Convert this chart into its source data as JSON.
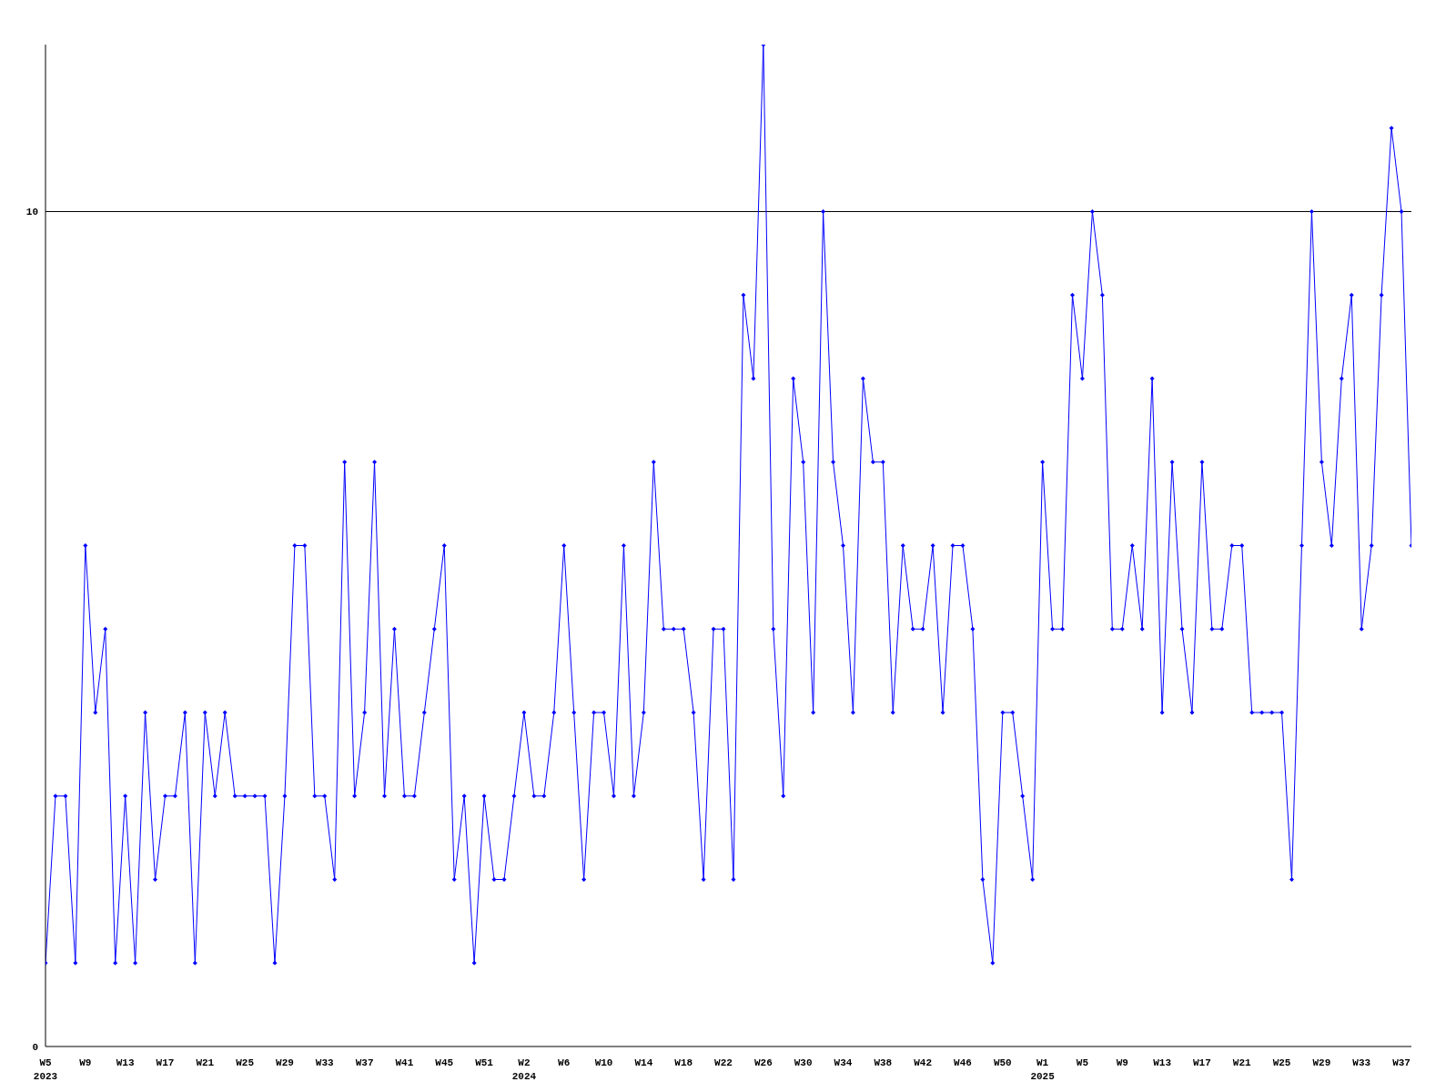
{
  "chart_data": {
    "type": "line",
    "categories": [
      "W5\n2023",
      null,
      null,
      null,
      "W9",
      null,
      null,
      null,
      "W13",
      null,
      null,
      null,
      "W17",
      null,
      null,
      null,
      "W21",
      null,
      null,
      null,
      "W25",
      null,
      null,
      null,
      "W29",
      null,
      null,
      null,
      "W33",
      null,
      null,
      null,
      "W37",
      null,
      null,
      null,
      "W41",
      null,
      null,
      null,
      "W45",
      null,
      null,
      null,
      "W51",
      null,
      null,
      null,
      "W2\n2024",
      null,
      null,
      null,
      "W6",
      null,
      null,
      null,
      "W10",
      null,
      null,
      null,
      "W14",
      null,
      null,
      null,
      "W18",
      null,
      null,
      null,
      "W22",
      null,
      null,
      null,
      "W26",
      null,
      null,
      null,
      "W30",
      null,
      null,
      null,
      "W34",
      null,
      null,
      null,
      "W38",
      null,
      null,
      null,
      "W42",
      null,
      null,
      null,
      "W46",
      null,
      null,
      null,
      "W50",
      null,
      null,
      null,
      "W1\n2025",
      null,
      null,
      null,
      "W5",
      null,
      null,
      null,
      "W9",
      null,
      null,
      null,
      "W13",
      null,
      null,
      null,
      "W17",
      null,
      null,
      null,
      "W21",
      null,
      null,
      null,
      "W25",
      null,
      null,
      null,
      "W29",
      null,
      null,
      null,
      "W33",
      null,
      null,
      null,
      "W37",
      null
    ],
    "series": [
      {
        "color": "#0000ff",
        "values": [
          1,
          3,
          3,
          1,
          6,
          4,
          5,
          1,
          3,
          1,
          4,
          2,
          3,
          3,
          4,
          1,
          4,
          3,
          4,
          3,
          3,
          3,
          3,
          1,
          3,
          6,
          6,
          3,
          3,
          2,
          7,
          3,
          4,
          7,
          3,
          5,
          3,
          3,
          4,
          5,
          6,
          2,
          3,
          1,
          3,
          2,
          2,
          3,
          4,
          3,
          3,
          4,
          6,
          4,
          2,
          4,
          4,
          3,
          6,
          3,
          4,
          7,
          5,
          5,
          5,
          4,
          2,
          5,
          5,
          2,
          9,
          8,
          12,
          5,
          3,
          8,
          7,
          4,
          10,
          7,
          6,
          4,
          8,
          7,
          7,
          4,
          6,
          5,
          5,
          6,
          4,
          6,
          6,
          5,
          2,
          1,
          4,
          4,
          3,
          2,
          7,
          5,
          5,
          9,
          8,
          10,
          9,
          5,
          5,
          6,
          5,
          8,
          4,
          7,
          5,
          4,
          7,
          5,
          5,
          6,
          6,
          4,
          4,
          4,
          4,
          2,
          6,
          10,
          7,
          6,
          8,
          9,
          5,
          6,
          9,
          11,
          10,
          6
        ]
      }
    ],
    "ylim": [
      0,
      12
    ],
    "yticks": [
      0,
      10
    ],
    "grid": "y",
    "marker": "diamond",
    "line_style": "solid"
  }
}
